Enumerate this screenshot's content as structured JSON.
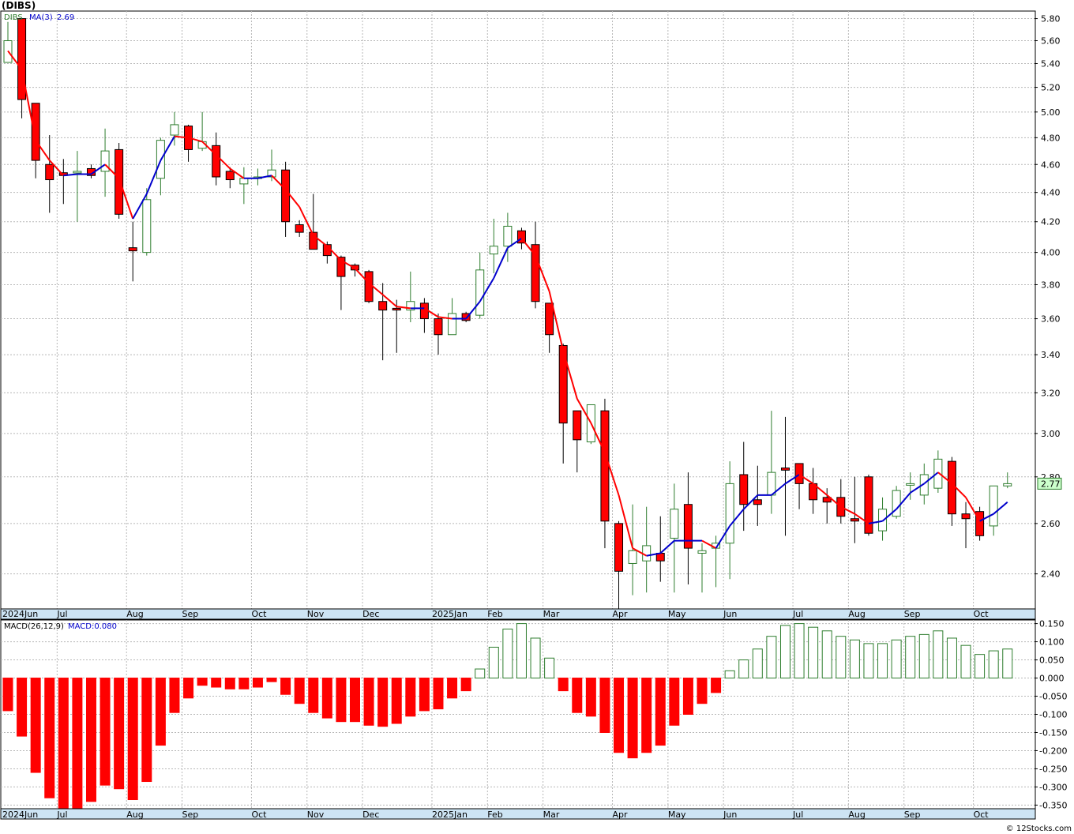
{
  "symbol_header": "(DIBS)",
  "price_legend": {
    "symbol": "DIBS",
    "ma_label": "MA(3)",
    "ma_value": "2.69"
  },
  "macd_legend": {
    "label": "MACD(26,12,9)",
    "value_label": "MACD:0.080"
  },
  "last_price_tag": "2.77",
  "watermark": "© 12Stocks.com",
  "colors": {
    "up_candle": "#2e7d2e",
    "down_candle": "#ff0000",
    "ma_falling": "#ff0000",
    "ma_rising": "#0000cc",
    "hist_positive": "#2e7d2e",
    "hist_negative": "#ff0000",
    "axis_band": "#cde4f4",
    "price_tag_bg": "#ccffcc"
  },
  "chart_data": [
    {
      "type": "candlestick",
      "title": "(DIBS)",
      "timeframe": "weekly",
      "ylim": [
        2.27,
        5.87
      ],
      "y_ticks": [
        2.4,
        2.6,
        2.8,
        3.0,
        3.2,
        3.4,
        3.6,
        3.8,
        4.0,
        4.2,
        4.4,
        4.6,
        4.8,
        5.0,
        5.2,
        5.4,
        5.6,
        5.8
      ],
      "y_tick_labels": [
        "2.40",
        "2.60",
        "2.80",
        "3.00",
        "3.20",
        "3.40",
        "3.60",
        "3.80",
        "4.00",
        "4.20",
        "4.40",
        "4.60",
        "4.80",
        "5.00",
        "5.20",
        "5.40",
        "5.60",
        "5.80"
      ],
      "x_labels": [
        {
          "label": "2024Jun",
          "week": 0
        },
        {
          "label": "Jul",
          "week": 4
        },
        {
          "label": "Aug",
          "week": 9
        },
        {
          "label": "Sep",
          "week": 13
        },
        {
          "label": "Oct",
          "week": 18
        },
        {
          "label": "Nov",
          "week": 22
        },
        {
          "label": "Dec",
          "week": 26
        },
        {
          "label": "2025Jan",
          "week": 31
        },
        {
          "label": "Feb",
          "week": 35
        },
        {
          "label": "Mar",
          "week": 39
        },
        {
          "label": "Apr",
          "week": 44
        },
        {
          "label": "May",
          "week": 48
        },
        {
          "label": "Jun",
          "week": 52
        },
        {
          "label": "Jul",
          "week": 57
        },
        {
          "label": "Aug",
          "week": 61
        },
        {
          "label": "Sep",
          "week": 65
        },
        {
          "label": "Oct",
          "week": 70
        }
      ],
      "grid": true,
      "series": [
        {
          "name": "DIBS",
          "ohlc": [
            [
              5.41,
              5.77,
              5.41,
              5.6
            ],
            [
              5.8,
              5.8,
              4.95,
              5.1
            ],
            [
              5.07,
              5.07,
              4.5,
              4.63
            ],
            [
              4.6,
              4.82,
              4.26,
              4.49
            ],
            [
              4.54,
              4.64,
              4.32,
              4.52
            ],
            [
              4.55,
              4.7,
              4.2,
              4.55
            ],
            [
              4.57,
              4.6,
              4.5,
              4.52
            ],
            [
              4.55,
              4.87,
              4.37,
              4.7
            ],
            [
              4.71,
              4.76,
              4.22,
              4.25
            ],
            [
              4.03,
              4.2,
              3.82,
              4.01
            ],
            [
              4.0,
              4.43,
              3.98,
              4.35
            ],
            [
              4.5,
              4.8,
              4.38,
              4.78
            ],
            [
              4.82,
              5.0,
              4.74,
              4.9
            ],
            [
              4.89,
              4.9,
              4.62,
              4.71
            ],
            [
              4.72,
              5.0,
              4.7,
              4.77
            ],
            [
              4.74,
              4.84,
              4.45,
              4.51
            ],
            [
              4.55,
              4.58,
              4.43,
              4.49
            ],
            [
              4.46,
              4.58,
              4.32,
              4.5
            ],
            [
              4.5,
              4.57,
              4.45,
              4.51
            ],
            [
              4.51,
              4.71,
              4.48,
              4.56
            ],
            [
              4.56,
              4.62,
              4.1,
              4.2
            ],
            [
              4.18,
              4.21,
              4.1,
              4.13
            ],
            [
              4.13,
              4.39,
              4.05,
              4.02
            ],
            [
              4.05,
              4.07,
              3.93,
              3.98
            ],
            [
              3.97,
              3.98,
              3.65,
              3.85
            ],
            [
              3.92,
              3.93,
              3.85,
              3.89
            ],
            [
              3.88,
              3.89,
              3.69,
              3.7
            ],
            [
              3.7,
              3.81,
              3.37,
              3.65
            ],
            [
              3.66,
              3.71,
              3.41,
              3.65
            ],
            [
              3.65,
              3.88,
              3.58,
              3.7
            ],
            [
              3.69,
              3.72,
              3.52,
              3.6
            ],
            [
              3.6,
              3.63,
              3.4,
              3.51
            ],
            [
              3.51,
              3.72,
              3.51,
              3.63
            ],
            [
              3.63,
              3.64,
              3.58,
              3.59
            ],
            [
              3.62,
              4.0,
              3.6,
              3.89
            ],
            [
              3.99,
              4.22,
              3.87,
              4.04
            ],
            [
              4.04,
              4.26,
              3.94,
              4.17
            ],
            [
              4.14,
              4.16,
              4.02,
              4.06
            ],
            [
              4.05,
              4.2,
              3.66,
              3.7
            ],
            [
              3.69,
              3.69,
              3.41,
              3.51
            ],
            [
              3.45,
              3.46,
              2.86,
              3.05
            ],
            [
              3.11,
              3.11,
              2.82,
              2.97
            ],
            [
              2.96,
              3.14,
              2.95,
              3.14
            ],
            [
              3.11,
              3.17,
              2.5,
              2.61
            ],
            [
              2.6,
              2.61,
              2.27,
              2.41
            ],
            [
              2.44,
              2.68,
              2.32,
              2.49
            ],
            [
              2.45,
              2.67,
              2.33,
              2.51
            ],
            [
              2.48,
              2.63,
              2.37,
              2.45
            ],
            [
              2.54,
              2.77,
              2.33,
              2.66
            ],
            [
              2.68,
              2.82,
              2.36,
              2.5
            ],
            [
              2.48,
              2.52,
              2.33,
              2.49
            ],
            [
              2.5,
              2.55,
              2.35,
              2.52
            ],
            [
              2.52,
              2.87,
              2.38,
              2.77
            ],
            [
              2.81,
              2.96,
              2.57,
              2.68
            ],
            [
              2.7,
              2.85,
              2.59,
              2.68
            ],
            [
              2.72,
              3.11,
              2.64,
              2.82
            ],
            [
              2.84,
              3.08,
              2.55,
              2.83
            ],
            [
              2.86,
              2.83,
              2.66,
              2.77
            ],
            [
              2.77,
              2.84,
              2.64,
              2.7
            ],
            [
              2.71,
              2.75,
              2.6,
              2.69
            ],
            [
              2.71,
              2.79,
              2.6,
              2.63
            ],
            [
              2.62,
              2.8,
              2.52,
              2.61
            ],
            [
              2.8,
              2.81,
              2.55,
              2.56
            ],
            [
              2.57,
              2.71,
              2.53,
              2.66
            ],
            [
              2.63,
              2.76,
              2.62,
              2.74
            ],
            [
              2.77,
              2.82,
              2.7,
              2.77
            ],
            [
              2.72,
              2.86,
              2.68,
              2.81
            ],
            [
              2.75,
              2.92,
              2.73,
              2.88
            ],
            [
              2.87,
              2.89,
              2.59,
              2.64
            ],
            [
              2.64,
              2.69,
              2.5,
              2.62
            ],
            [
              2.65,
              2.67,
              2.53,
              2.55
            ],
            [
              2.59,
              2.76,
              2.55,
              2.76
            ],
            [
              2.76,
              2.82,
              2.75,
              2.77
            ]
          ]
        },
        {
          "name": "MA(3)",
          "values": [
            5.51,
            5.35,
            4.78,
            4.63,
            4.52,
            4.53,
            4.53,
            4.6,
            4.5,
            4.22,
            4.39,
            4.63,
            4.81,
            4.8,
            4.77,
            4.67,
            4.57,
            4.5,
            4.5,
            4.52,
            4.42,
            4.3,
            4.11,
            4.04,
            3.95,
            3.9,
            3.81,
            3.74,
            3.67,
            3.66,
            3.66,
            3.61,
            3.6,
            3.6,
            3.7,
            3.84,
            4.03,
            4.09,
            3.98,
            3.76,
            3.42,
            3.17,
            3.05,
            2.91,
            2.72,
            2.5,
            2.47,
            2.48,
            2.53,
            2.53,
            2.53,
            2.5,
            2.59,
            2.66,
            2.72,
            2.72,
            2.77,
            2.81,
            2.77,
            2.72,
            2.67,
            2.64,
            2.6,
            2.61,
            2.66,
            2.73,
            2.77,
            2.82,
            2.77,
            2.71,
            2.61,
            2.64,
            2.69
          ]
        }
      ]
    },
    {
      "type": "bar",
      "title": "MACD(26,12,9)",
      "ylim": [
        -0.36,
        0.16
      ],
      "y_ticks": [
        -0.35,
        -0.3,
        -0.25,
        -0.2,
        -0.15,
        -0.1,
        -0.05,
        0.0,
        0.05,
        0.1,
        0.15
      ],
      "y_tick_labels": [
        "-0.350",
        "-0.300",
        "-0.250",
        "-0.200",
        "-0.150",
        "-0.100",
        "-0.050",
        "0.000",
        "0.050",
        "0.100",
        "0.150"
      ],
      "series": [
        {
          "name": "MACD",
          "values": [
            -0.09,
            -0.16,
            -0.26,
            -0.33,
            -0.36,
            -0.36,
            -0.34,
            -0.295,
            -0.305,
            -0.335,
            -0.285,
            -0.185,
            -0.095,
            -0.055,
            -0.02,
            -0.025,
            -0.03,
            -0.03,
            -0.025,
            -0.01,
            -0.045,
            -0.07,
            -0.095,
            -0.11,
            -0.12,
            -0.12,
            -0.13,
            -0.133,
            -0.125,
            -0.105,
            -0.09,
            -0.085,
            -0.055,
            -0.035,
            0.025,
            0.085,
            0.135,
            0.15,
            0.11,
            0.055,
            -0.035,
            -0.095,
            -0.105,
            -0.15,
            -0.205,
            -0.22,
            -0.205,
            -0.185,
            -0.13,
            -0.1,
            -0.07,
            -0.04,
            0.02,
            0.05,
            0.08,
            0.115,
            0.145,
            0.15,
            0.14,
            0.13,
            0.115,
            0.105,
            0.095,
            0.095,
            0.105,
            0.115,
            0.12,
            0.13,
            0.11,
            0.09,
            0.065,
            0.075,
            0.08
          ]
        }
      ]
    }
  ]
}
